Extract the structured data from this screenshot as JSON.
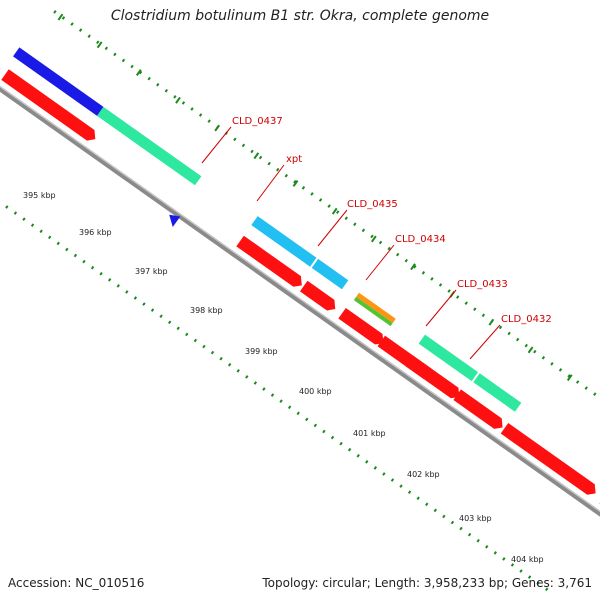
{
  "title": "Clostridium botulinum B1 str. Okra, complete genome",
  "footer": {
    "accession": "Accession: NC_010516",
    "summary": "Topology: circular; Length: 3,958,233 bp; Genes: 3,761"
  },
  "colors": {
    "backbone": "#8a8a8a",
    "cds": "#ff1010",
    "gene_teal": "#2ee8a0",
    "gene_cyan": "#22bff2",
    "gene_orange": "#ff9410",
    "gene_green": "#55c235",
    "gene_blue": "#1a1ae6",
    "gene_label": "#d00000",
    "dots": "#1a8a1a"
  },
  "gene_labels": [
    {
      "id": "cld-0437",
      "text": "CLD_0437"
    },
    {
      "id": "xpt",
      "text": "xpt"
    },
    {
      "id": "cld-0435",
      "text": "CLD_0435"
    },
    {
      "id": "cld-0434",
      "text": "CLD_0434"
    },
    {
      "id": "cld-0433",
      "text": "CLD_0433"
    },
    {
      "id": "cld-0432",
      "text": "CLD_0432"
    }
  ],
  "kbp_ticks": [
    "395 kbp",
    "396 kbp",
    "397 kbp",
    "398 kbp",
    "399 kbp",
    "400 kbp",
    "401 kbp",
    "402 kbp",
    "403 kbp",
    "404 kbp"
  ]
}
